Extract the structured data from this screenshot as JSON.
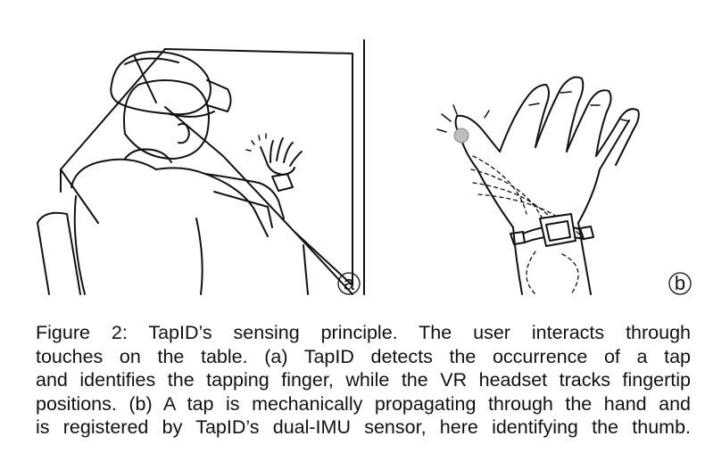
{
  "figure": {
    "panel_a_label": "a",
    "panel_b_label": "b"
  },
  "caption": {
    "lines": [
      "Figure 2: TapID’s sensing principle.  The user interacts through",
      "touches on the table.  (a) TapID detects the occurrence of a tap",
      "and identifies the tapping finger, while the VR headset tracks fingertip",
      "positions. (b) A tap is mechanically propagating through the hand and",
      "is registered by TapID’s dual-IMU sensor, here identifying the thumb."
    ]
  }
}
